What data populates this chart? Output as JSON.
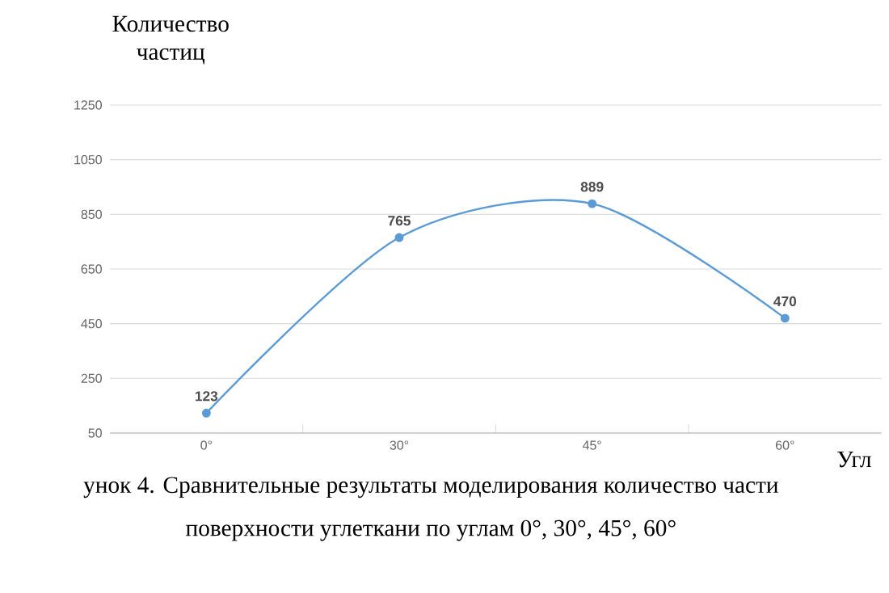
{
  "chart_data": {
    "type": "line",
    "ylabel": "Количество частиц",
    "xlabel": "Угл",
    "annotations": [
      "унок 4. Сравнительные результаты моделирования количество части",
      "поверхности углеткани по углам 0°, 30°, 45°, 60°"
    ],
    "categories": [
      "0°",
      "30°",
      "45°",
      "60°"
    ],
    "values": [
      123,
      765,
      889,
      470
    ],
    "color": "#5b9bd5",
    "marker": "circle",
    "data_labels": true,
    "grid": "y",
    "ylim": [
      50,
      1250
    ],
    "yticks": [
      50,
      250,
      450,
      650,
      850,
      1050,
      1250
    ]
  }
}
